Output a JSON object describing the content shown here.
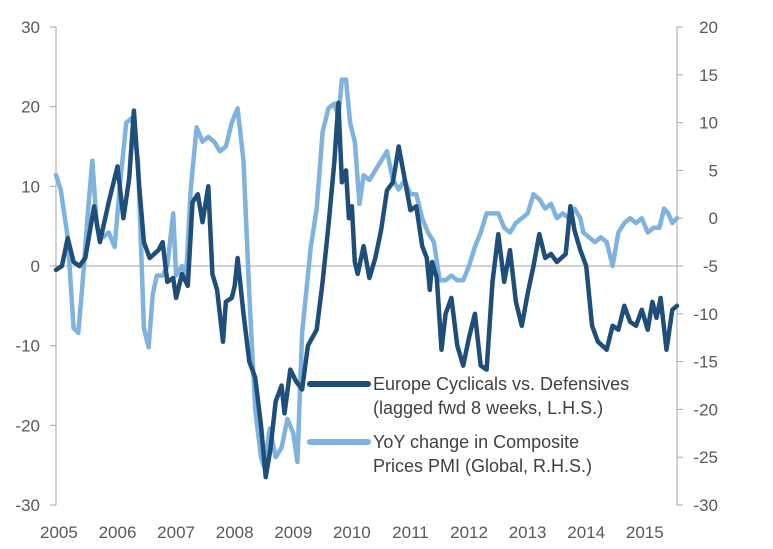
{
  "chart_data": {
    "type": "line",
    "title": "",
    "x_ticks": [
      "2005",
      "2006",
      "2007",
      "2008",
      "2009",
      "2010",
      "2011",
      "2012",
      "2013",
      "2014",
      "2015"
    ],
    "x_range": [
      2005.0,
      2015.6
    ],
    "y_left": {
      "ticks": [
        "30",
        "20",
        "10",
        "0",
        "-10",
        "-20",
        "-30"
      ],
      "lim": [
        -30,
        30
      ]
    },
    "y_right": {
      "ticks": [
        "20",
        "15",
        "10",
        "5",
        "0",
        "-5",
        "-10",
        "-15",
        "-20",
        "-25",
        "-30"
      ],
      "lim": [
        -30,
        20
      ]
    },
    "series": [
      {
        "name": "cyclicals",
        "axis": "left",
        "color": "#1f4e79",
        "legend": [
          "Europe Cyclicals vs. Defensives",
          "(lagged fwd 8 weeks, L.H.S.)"
        ],
        "points": [
          [
            2005.0,
            -0.5
          ],
          [
            2005.1,
            0.0
          ],
          [
            2005.2,
            3.5
          ],
          [
            2005.3,
            0.5
          ],
          [
            2005.4,
            0.0
          ],
          [
            2005.5,
            1.0
          ],
          [
            2005.65,
            7.5
          ],
          [
            2005.75,
            3.0
          ],
          [
            2005.9,
            8.0
          ],
          [
            2006.05,
            12.5
          ],
          [
            2006.15,
            6.0
          ],
          [
            2006.25,
            11.0
          ],
          [
            2006.33,
            19.5
          ],
          [
            2006.42,
            10.0
          ],
          [
            2006.5,
            3.0
          ],
          [
            2006.6,
            1.0
          ],
          [
            2006.75,
            2.0
          ],
          [
            2006.82,
            3.0
          ],
          [
            2006.9,
            -2.0
          ],
          [
            2007.0,
            -1.5
          ],
          [
            2007.05,
            -4.0
          ],
          [
            2007.15,
            -1.0
          ],
          [
            2007.25,
            -2.5
          ],
          [
            2007.33,
            8.0
          ],
          [
            2007.42,
            9.0
          ],
          [
            2007.5,
            5.5
          ],
          [
            2007.6,
            10.0
          ],
          [
            2007.67,
            -1.0
          ],
          [
            2007.75,
            -3.0
          ],
          [
            2007.85,
            -9.5
          ],
          [
            2007.9,
            -4.5
          ],
          [
            2008.0,
            -4.0
          ],
          [
            2008.05,
            -2.5
          ],
          [
            2008.1,
            1.0
          ],
          [
            2008.2,
            -6.0
          ],
          [
            2008.3,
            -12.0
          ],
          [
            2008.4,
            -14.0
          ],
          [
            2008.5,
            -20.0
          ],
          [
            2008.58,
            -26.5
          ],
          [
            2008.66,
            -23.0
          ],
          [
            2008.75,
            -17.0
          ],
          [
            2008.85,
            -15.0
          ],
          [
            2008.9,
            -18.5
          ],
          [
            2009.0,
            -13.0
          ],
          [
            2009.1,
            -14.5
          ],
          [
            2009.2,
            -15.5
          ],
          [
            2009.3,
            -10.0
          ],
          [
            2009.45,
            -8.0
          ],
          [
            2009.55,
            -2.0
          ],
          [
            2009.65,
            5.0
          ],
          [
            2009.75,
            13.0
          ],
          [
            2009.82,
            20.5
          ],
          [
            2009.88,
            10.5
          ],
          [
            2009.95,
            12.0
          ],
          [
            2010.0,
            6.0
          ],
          [
            2010.05,
            7.5
          ],
          [
            2010.1,
            0.5
          ],
          [
            2010.15,
            -1.0
          ],
          [
            2010.25,
            2.5
          ],
          [
            2010.35,
            -1.5
          ],
          [
            2010.45,
            1.0
          ],
          [
            2010.55,
            4.5
          ],
          [
            2010.65,
            9.5
          ],
          [
            2010.75,
            10.5
          ],
          [
            2010.85,
            15.0
          ],
          [
            2010.95,
            11.0
          ],
          [
            2011.05,
            7.0
          ],
          [
            2011.15,
            7.5
          ],
          [
            2011.25,
            2.5
          ],
          [
            2011.33,
            1.0
          ],
          [
            2011.38,
            -3.0
          ],
          [
            2011.42,
            0.5
          ],
          [
            2011.5,
            -1.5
          ],
          [
            2011.58,
            -10.5
          ],
          [
            2011.65,
            -6.0
          ],
          [
            2011.75,
            -4.0
          ],
          [
            2011.85,
            -10.0
          ],
          [
            2011.95,
            -12.5
          ],
          [
            2012.05,
            -9.0
          ],
          [
            2012.15,
            -6.0
          ],
          [
            2012.25,
            -12.5
          ],
          [
            2012.35,
            -13.0
          ],
          [
            2012.45,
            -2.0
          ],
          [
            2012.55,
            4.0
          ],
          [
            2012.65,
            -2.0
          ],
          [
            2012.75,
            2.0
          ],
          [
            2012.85,
            -4.5
          ],
          [
            2012.95,
            -7.5
          ],
          [
            2013.05,
            -3.5
          ],
          [
            2013.15,
            0.0
          ],
          [
            2013.25,
            4.0
          ],
          [
            2013.35,
            1.0
          ],
          [
            2013.45,
            1.5
          ],
          [
            2013.55,
            0.5
          ],
          [
            2013.7,
            1.5
          ],
          [
            2013.78,
            7.5
          ],
          [
            2013.85,
            4.5
          ],
          [
            2013.95,
            2.0
          ],
          [
            2014.05,
            0.0
          ],
          [
            2014.15,
            -7.5
          ],
          [
            2014.25,
            -9.5
          ],
          [
            2014.4,
            -10.5
          ],
          [
            2014.5,
            -7.5
          ],
          [
            2014.6,
            -8.0
          ],
          [
            2014.7,
            -5.0
          ],
          [
            2014.8,
            -7.0
          ],
          [
            2014.9,
            -7.5
          ],
          [
            2015.0,
            -5.5
          ],
          [
            2015.1,
            -8.0
          ],
          [
            2015.18,
            -4.5
          ],
          [
            2015.25,
            -6.5
          ],
          [
            2015.32,
            -4.0
          ],
          [
            2015.42,
            -10.5
          ],
          [
            2015.52,
            -5.5
          ],
          [
            2015.6,
            -5.0
          ]
        ]
      },
      {
        "name": "pmi",
        "axis": "right",
        "color": "#7fb2dd",
        "legend": [
          "YoY change in Composite",
          "Prices PMI (Global, R.H.S.)"
        ],
        "points": [
          [
            2005.0,
            4.5
          ],
          [
            2005.08,
            3.0
          ],
          [
            2005.2,
            -2.0
          ],
          [
            2005.3,
            -11.5
          ],
          [
            2005.38,
            -12.0
          ],
          [
            2005.45,
            -7.0
          ],
          [
            2005.55,
            1.0
          ],
          [
            2005.62,
            6.0
          ],
          [
            2005.7,
            -1.0
          ],
          [
            2005.8,
            -2.0
          ],
          [
            2005.9,
            -1.5
          ],
          [
            2006.0,
            -3.0
          ],
          [
            2006.1,
            4.0
          ],
          [
            2006.2,
            10.0
          ],
          [
            2006.3,
            10.5
          ],
          [
            2006.4,
            6.0
          ],
          [
            2006.5,
            -11.5
          ],
          [
            2006.58,
            -13.5
          ],
          [
            2006.65,
            -8.0
          ],
          [
            2006.72,
            -6.0
          ],
          [
            2006.82,
            -6.0
          ],
          [
            2006.9,
            -5.0
          ],
          [
            2007.0,
            0.5
          ],
          [
            2007.05,
            -6.0
          ],
          [
            2007.15,
            -5.0
          ],
          [
            2007.22,
            -6.0
          ],
          [
            2007.3,
            3.0
          ],
          [
            2007.4,
            9.5
          ],
          [
            2007.5,
            8.0
          ],
          [
            2007.6,
            8.5
          ],
          [
            2007.7,
            8.0
          ],
          [
            2007.8,
            7.0
          ],
          [
            2007.9,
            7.5
          ],
          [
            2008.0,
            10.0
          ],
          [
            2008.1,
            11.5
          ],
          [
            2008.2,
            6.0
          ],
          [
            2008.3,
            -8.0
          ],
          [
            2008.4,
            -20.0
          ],
          [
            2008.5,
            -25.0
          ],
          [
            2008.55,
            -26.0
          ],
          [
            2008.65,
            -22.0
          ],
          [
            2008.75,
            -25.0
          ],
          [
            2008.85,
            -24.0
          ],
          [
            2008.95,
            -21.0
          ],
          [
            2009.05,
            -22.5
          ],
          [
            2009.12,
            -25.5
          ],
          [
            2009.2,
            -12.0
          ],
          [
            2009.35,
            -3.0
          ],
          [
            2009.45,
            1.0
          ],
          [
            2009.55,
            9.0
          ],
          [
            2009.65,
            11.5
          ],
          [
            2009.75,
            12.0
          ],
          [
            2009.82,
            10.5
          ],
          [
            2009.88,
            14.5
          ],
          [
            2009.95,
            14.5
          ],
          [
            2010.02,
            10.0
          ],
          [
            2010.1,
            8.0
          ],
          [
            2010.18,
            1.5
          ],
          [
            2010.25,
            4.5
          ],
          [
            2010.35,
            4.0
          ],
          [
            2010.45,
            5.0
          ],
          [
            2010.55,
            6.0
          ],
          [
            2010.65,
            7.0
          ],
          [
            2010.75,
            4.0
          ],
          [
            2010.85,
            3.0
          ],
          [
            2010.95,
            4.0
          ],
          [
            2011.05,
            2.5
          ],
          [
            2011.15,
            2.5
          ],
          [
            2011.25,
            0.0
          ],
          [
            2011.35,
            -1.5
          ],
          [
            2011.45,
            -2.5
          ],
          [
            2011.55,
            -6.5
          ],
          [
            2011.65,
            -6.5
          ],
          [
            2011.75,
            -6.0
          ],
          [
            2011.85,
            -6.5
          ],
          [
            2011.95,
            -6.5
          ],
          [
            2012.05,
            -5.0
          ],
          [
            2012.15,
            -3.0
          ],
          [
            2012.25,
            -1.5
          ],
          [
            2012.35,
            0.5
          ],
          [
            2012.45,
            0.5
          ],
          [
            2012.55,
            0.5
          ],
          [
            2012.65,
            -1.0
          ],
          [
            2012.75,
            -1.5
          ],
          [
            2012.85,
            -0.5
          ],
          [
            2012.95,
            0.0
          ],
          [
            2013.05,
            0.5
          ],
          [
            2013.15,
            2.5
          ],
          [
            2013.25,
            2.0
          ],
          [
            2013.35,
            1.0
          ],
          [
            2013.45,
            1.5
          ],
          [
            2013.55,
            0.0
          ],
          [
            2013.65,
            0.5
          ],
          [
            2013.75,
            0.0
          ],
          [
            2013.85,
            1.0
          ],
          [
            2013.95,
            0.0
          ],
          [
            2014.0,
            -1.5
          ],
          [
            2014.1,
            -2.0
          ],
          [
            2014.2,
            -2.5
          ],
          [
            2014.3,
            -2.0
          ],
          [
            2014.4,
            -2.5
          ],
          [
            2014.5,
            -5.0
          ],
          [
            2014.6,
            -1.5
          ],
          [
            2014.7,
            -0.5
          ],
          [
            2014.8,
            0.0
          ],
          [
            2014.9,
            -0.5
          ],
          [
            2015.0,
            0.0
          ],
          [
            2015.1,
            -1.5
          ],
          [
            2015.2,
            -1.0
          ],
          [
            2015.3,
            -1.0
          ],
          [
            2015.38,
            1.0
          ],
          [
            2015.45,
            0.5
          ],
          [
            2015.52,
            -0.5
          ],
          [
            2015.6,
            0.0
          ]
        ]
      }
    ]
  }
}
